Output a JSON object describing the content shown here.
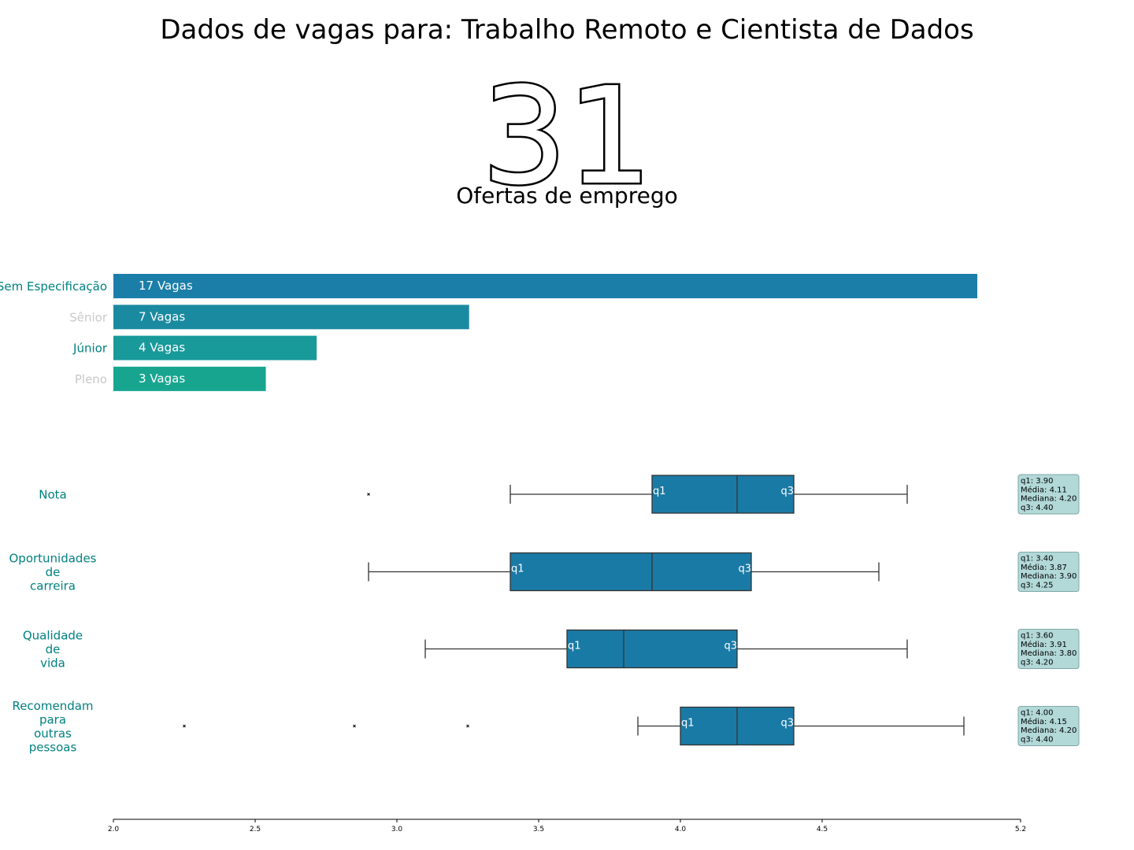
{
  "title": "Dados de vagas para: Trabalho Remoto e Cientista de Dados",
  "kpi": {
    "value": "31",
    "label": "Ofertas de emprego"
  },
  "colors": {
    "bar_sem_especificacao": "#1a7ea8",
    "bar_senior": "#1a8aa0",
    "bar_junior": "#18999a",
    "bar_pleno": "#18a590",
    "box_fill": "#1a7aa6",
    "category_label": "#008080",
    "category_label_muted": "#c8c8c8",
    "stats_box_fill": "#b2d8d8",
    "stats_box_edge": "#7fa6a6"
  },
  "chart_data": [
    {
      "type": "bar",
      "orientation": "horizontal",
      "categories": [
        "Sem Especificação",
        "Sênior",
        "Júnior",
        "Pleno"
      ],
      "values": [
        17,
        7,
        4,
        3
      ],
      "data_labels": [
        "17 Vagas",
        "7 Vagas",
        "4 Vagas",
        "3 Vagas"
      ],
      "muted_categories": [
        "Sênior",
        "Pleno"
      ]
    },
    {
      "type": "boxplot",
      "orientation": "horizontal",
      "xlim": [
        2.0,
        5.2
      ],
      "xticks": [
        "2.0",
        "2.5",
        "3.0",
        "3.5",
        "4.0",
        "4.5",
        "5.2"
      ],
      "xtick_values": [
        2.0,
        2.5,
        3.0,
        3.5,
        4.0,
        4.5,
        5.2
      ],
      "quartile_labels": [
        "q1",
        "q3"
      ],
      "series": [
        {
          "label": "Nota",
          "whisker_low": 3.4,
          "q1": 3.9,
          "median": 4.2,
          "q3": 4.4,
          "whisker_high": 4.8,
          "outliers": [
            2.9
          ],
          "stats": [
            "q1: 3.90",
            "Média: 4.11",
            "Mediana: 4.20",
            "q3: 4.40"
          ]
        },
        {
          "label": "Oportunidades\nde\ncarreira",
          "whisker_low": 2.9,
          "q1": 3.4,
          "median": 3.9,
          "q3": 4.25,
          "whisker_high": 4.7,
          "outliers": [],
          "stats": [
            "q1: 3.40",
            "Média: 3.87",
            "Mediana: 3.90",
            "q3: 4.25"
          ]
        },
        {
          "label": "Qualidade\nde\nvida",
          "whisker_low": 3.1,
          "q1": 3.6,
          "median": 3.8,
          "q3": 4.2,
          "whisker_high": 4.8,
          "outliers": [],
          "stats": [
            "q1: 3.60",
            "Média: 3.91",
            "Mediana: 3.80",
            "q3: 4.20"
          ]
        },
        {
          "label": "Recomendam\npara\noutras\npessoas",
          "whisker_low": 3.85,
          "q1": 4.0,
          "median": 4.2,
          "q3": 4.4,
          "whisker_high": 5.0,
          "outliers": [
            2.25,
            2.85,
            3.25
          ],
          "stats": [
            "q1: 4.00",
            "Média: 4.15",
            "Mediana: 4.20",
            "q3: 4.40"
          ]
        }
      ]
    }
  ]
}
